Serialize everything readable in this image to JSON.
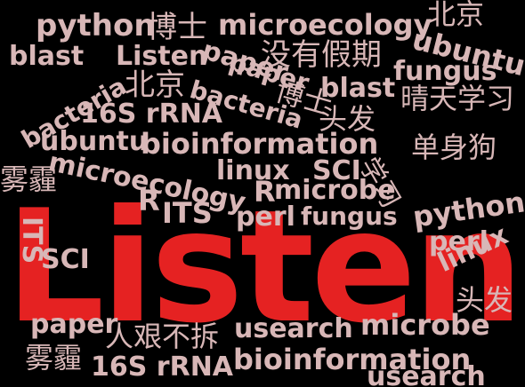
{
  "word_cloud": {
    "background": "#000000",
    "palette": {
      "default": "#d8b7b7",
      "highlight": "#e52222"
    },
    "words": [
      {
        "text": "Listen",
        "color": "#e52222",
        "emphasis": "largest"
      },
      {
        "text": "python"
      },
      {
        "text": "博士"
      },
      {
        "text": "microecology"
      },
      {
        "text": "北京"
      },
      {
        "text": "blast"
      },
      {
        "text": "Listen"
      },
      {
        "text": "paper"
      },
      {
        "text": "没有假期"
      },
      {
        "text": "ubuntu"
      },
      {
        "text": "fungus"
      },
      {
        "text": "bacteria"
      },
      {
        "text": "北京"
      },
      {
        "text": "bacteria"
      },
      {
        "text": "paper"
      },
      {
        "text": "博士"
      },
      {
        "text": "blast"
      },
      {
        "text": "晴天学习"
      },
      {
        "text": "16S rRNA"
      },
      {
        "text": "头发"
      },
      {
        "text": "ubuntu"
      },
      {
        "text": "bioinformation"
      },
      {
        "text": "单身狗"
      },
      {
        "text": "microecology"
      },
      {
        "text": "linux"
      },
      {
        "text": "SCI"
      },
      {
        "text": "学习"
      },
      {
        "text": "雾霾"
      },
      {
        "text": "R"
      },
      {
        "text": "microbe"
      },
      {
        "text": "R"
      },
      {
        "text": "ITS"
      },
      {
        "text": "perl"
      },
      {
        "text": "fungus"
      },
      {
        "text": "python"
      },
      {
        "text": "ITS"
      },
      {
        "text": "perl"
      },
      {
        "text": "SCI"
      },
      {
        "text": "linux"
      },
      {
        "text": "头发"
      },
      {
        "text": "paper"
      },
      {
        "text": "人艰不拆"
      },
      {
        "text": "usearch"
      },
      {
        "text": "microbe"
      },
      {
        "text": "雾霾"
      },
      {
        "text": "16S rRNA"
      },
      {
        "text": "bioinformation"
      },
      {
        "text": "usearch"
      }
    ]
  }
}
